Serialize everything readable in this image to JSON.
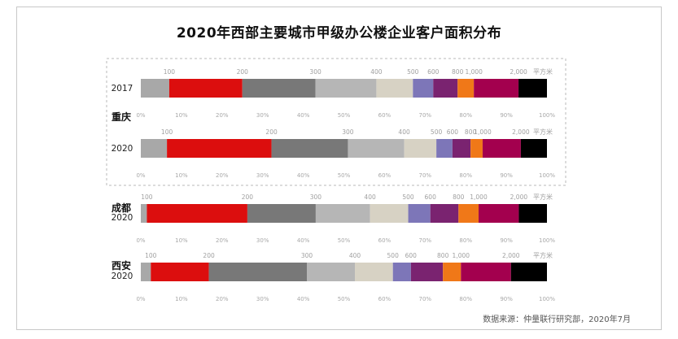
{
  "title": "2020年西部主要城市甲级办公楼企业客户面积分布",
  "source": "数据来源：仲量联行研究部，2020年7月",
  "unit_label": "平方米",
  "chart_data": {
    "type": "bar",
    "stacked": "100%",
    "orientation": "horizontal",
    "title": "2020年西部主要城市甲级办公楼企业客户面积分布",
    "size_labels": [
      "100",
      "200",
      "300",
      "400",
      "500",
      "600",
      "800",
      "1,000",
      "2,000"
    ],
    "percent_ticks": [
      "0%",
      "10%",
      "20%",
      "30%",
      "40%",
      "50%",
      "60%",
      "70%",
      "80%",
      "90%",
      "100%"
    ],
    "series_colors": [
      "#a8a8a8",
      "#dc0e0e",
      "#787878",
      "#b6b6b6",
      "#d7d2c4",
      "#7d76b8",
      "#7a2370",
      "#f07818",
      "#a3004e",
      "#000000"
    ],
    "rows": [
      {
        "city": "",
        "year": "2017",
        "values": [
          7,
          18,
          18,
          15,
          9,
          5,
          6,
          4,
          11,
          7
        ]
      },
      {
        "city": "重庆",
        "year": "2020",
        "values": [
          6.5,
          26,
          19,
          14,
          8,
          4,
          4.5,
          3,
          9.5,
          6.5
        ]
      },
      {
        "city": "成都",
        "year": "2020",
        "values": [
          1.5,
          25,
          17,
          13.5,
          9.5,
          5.5,
          7,
          5,
          10,
          7
        ]
      },
      {
        "city": "西安",
        "year": "2020",
        "values": [
          2.5,
          14.5,
          24.5,
          12,
          9.5,
          4.5,
          8,
          4.5,
          12.5,
          9
        ]
      }
    ],
    "legend_position": "none",
    "grid": false
  }
}
